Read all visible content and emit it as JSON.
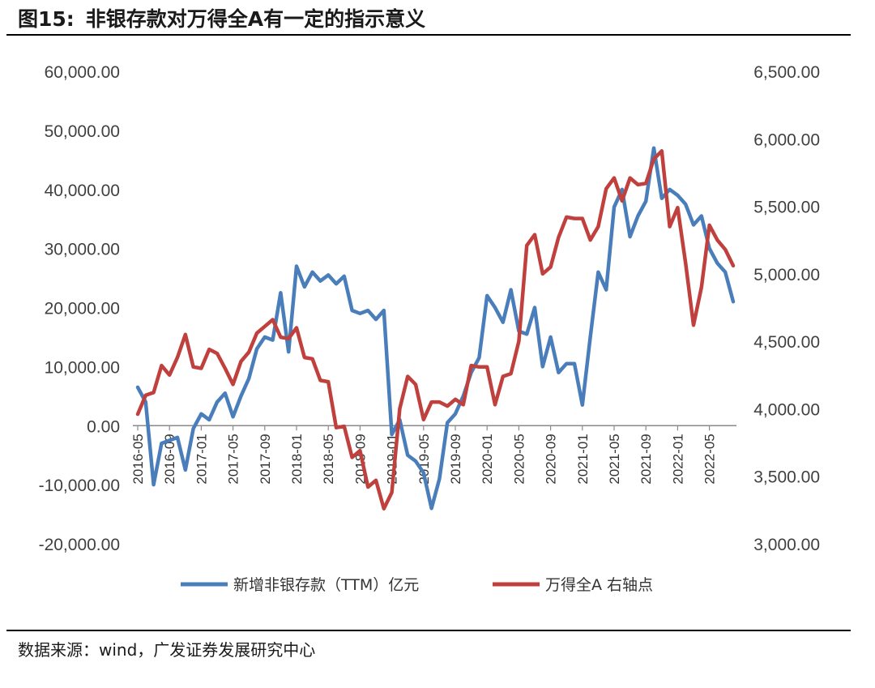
{
  "header": {
    "figure_number": "图15:",
    "title": "非银存款对万得全A有一定的指示意义"
  },
  "footer": {
    "source": "数据来源：wind，广发证券发展研究中心"
  },
  "chart_data": {
    "type": "line",
    "title": "非银存款对万得全A有一定的指示意义",
    "left_axis": {
      "ylim": [
        -20000,
        60000
      ],
      "ticks": [
        60000,
        50000,
        40000,
        30000,
        20000,
        10000,
        0,
        -10000,
        -20000
      ],
      "tick_labels": [
        "60,000.00",
        "50,000.00",
        "40,000.00",
        "30,000.00",
        "20,000.00",
        "10,000.00",
        "0.00",
        "-10,000.00",
        "-20,000.00"
      ]
    },
    "right_axis": {
      "ylim": [
        3000,
        6500
      ],
      "ticks": [
        6500,
        6000,
        5500,
        5000,
        4500,
        4000,
        3500,
        3000
      ],
      "tick_labels": [
        "6,500.00",
        "6,000.00",
        "5,500.00",
        "5,000.00",
        "4,500.00",
        "4,000.00",
        "3,500.00",
        "3,000.00"
      ]
    },
    "x": [
      "2016-05",
      "2016-06",
      "2016-07",
      "2016-08",
      "2016-09",
      "2016-10",
      "2016-11",
      "2016-12",
      "2017-01",
      "2017-02",
      "2017-03",
      "2017-04",
      "2017-05",
      "2017-06",
      "2017-07",
      "2017-08",
      "2017-09",
      "2017-10",
      "2017-11",
      "2017-12",
      "2018-01",
      "2018-02",
      "2018-03",
      "2018-04",
      "2018-05",
      "2018-06",
      "2018-07",
      "2018-08",
      "2018-09",
      "2018-10",
      "2018-11",
      "2018-12",
      "2019-01",
      "2019-02",
      "2019-03",
      "2019-04",
      "2019-05",
      "2019-06",
      "2019-07",
      "2019-08",
      "2019-09",
      "2019-10",
      "2019-11",
      "2019-12",
      "2020-01",
      "2020-02",
      "2020-03",
      "2020-04",
      "2020-05",
      "2020-06",
      "2020-07",
      "2020-08",
      "2020-09",
      "2020-10",
      "2020-11",
      "2020-12",
      "2021-01",
      "2021-02",
      "2021-03",
      "2021-04",
      "2021-05",
      "2021-06",
      "2021-07",
      "2021-08",
      "2021-09",
      "2021-10",
      "2021-11",
      "2021-12",
      "2022-01",
      "2022-02",
      "2022-03",
      "2022-04",
      "2022-05",
      "2022-06",
      "2022-07",
      "2022-08"
    ],
    "tick_labels": [
      "2016-05",
      "2016-09",
      "2017-01",
      "2017-05",
      "2017-09",
      "2018-01",
      "2018-05",
      "2018-09",
      "2019-01",
      "2019-05",
      "2019-09",
      "2020-01",
      "2020-05",
      "2020-09",
      "2021-01",
      "2021-05",
      "2021-09",
      "2022-01",
      "2022-05"
    ],
    "series": [
      {
        "name": "新增非银存款（TTM）亿元",
        "axis": "left",
        "color": "#4a7ebb",
        "values": [
          6500,
          4000,
          -10000,
          -3000,
          -2500,
          -2000,
          -7500,
          -500,
          2000,
          1000,
          4000,
          5500,
          1500,
          5000,
          8000,
          13000,
          15000,
          14500,
          22500,
          12500,
          27000,
          23500,
          26000,
          24500,
          25500,
          24000,
          25300,
          19500,
          19000,
          19500,
          18000,
          19500,
          -1500,
          1000,
          -5000,
          -6000,
          -8000,
          -14000,
          -9000,
          500,
          2000,
          5000,
          9000,
          11500,
          22000,
          20000,
          17500,
          23000,
          16000,
          15500,
          20000,
          10000,
          15000,
          9000,
          10500,
          10500,
          3500,
          15000,
          26000,
          23000,
          37000,
          40000,
          32000,
          35500,
          38000,
          47000,
          38500,
          40000,
          39000,
          37500,
          34000,
          35500,
          30000,
          27500,
          26000,
          21000
        ]
      },
      {
        "name": "万得全A 右轴点",
        "axis": "right",
        "color": "#c0403e",
        "values": [
          3960,
          4100,
          4120,
          4320,
          4250,
          4380,
          4550,
          4310,
          4300,
          4440,
          4410,
          4300,
          4180,
          4350,
          4420,
          4560,
          4610,
          4660,
          4530,
          4520,
          4600,
          4380,
          4370,
          4210,
          4200,
          3860,
          3870,
          3640,
          3690,
          3420,
          3470,
          3260,
          3380,
          4000,
          4240,
          4180,
          3920,
          4050,
          4050,
          4020,
          4070,
          4030,
          4320,
          4310,
          4310,
          4030,
          4240,
          4260,
          4500,
          5210,
          5290,
          5000,
          5050,
          5270,
          5420,
          5410,
          5410,
          5250,
          5350,
          5630,
          5710,
          5540,
          5710,
          5660,
          5670,
          5850,
          5910,
          5350,
          5490,
          5080,
          4620,
          4900,
          5360,
          5250,
          5180,
          5060
        ]
      }
    ]
  }
}
